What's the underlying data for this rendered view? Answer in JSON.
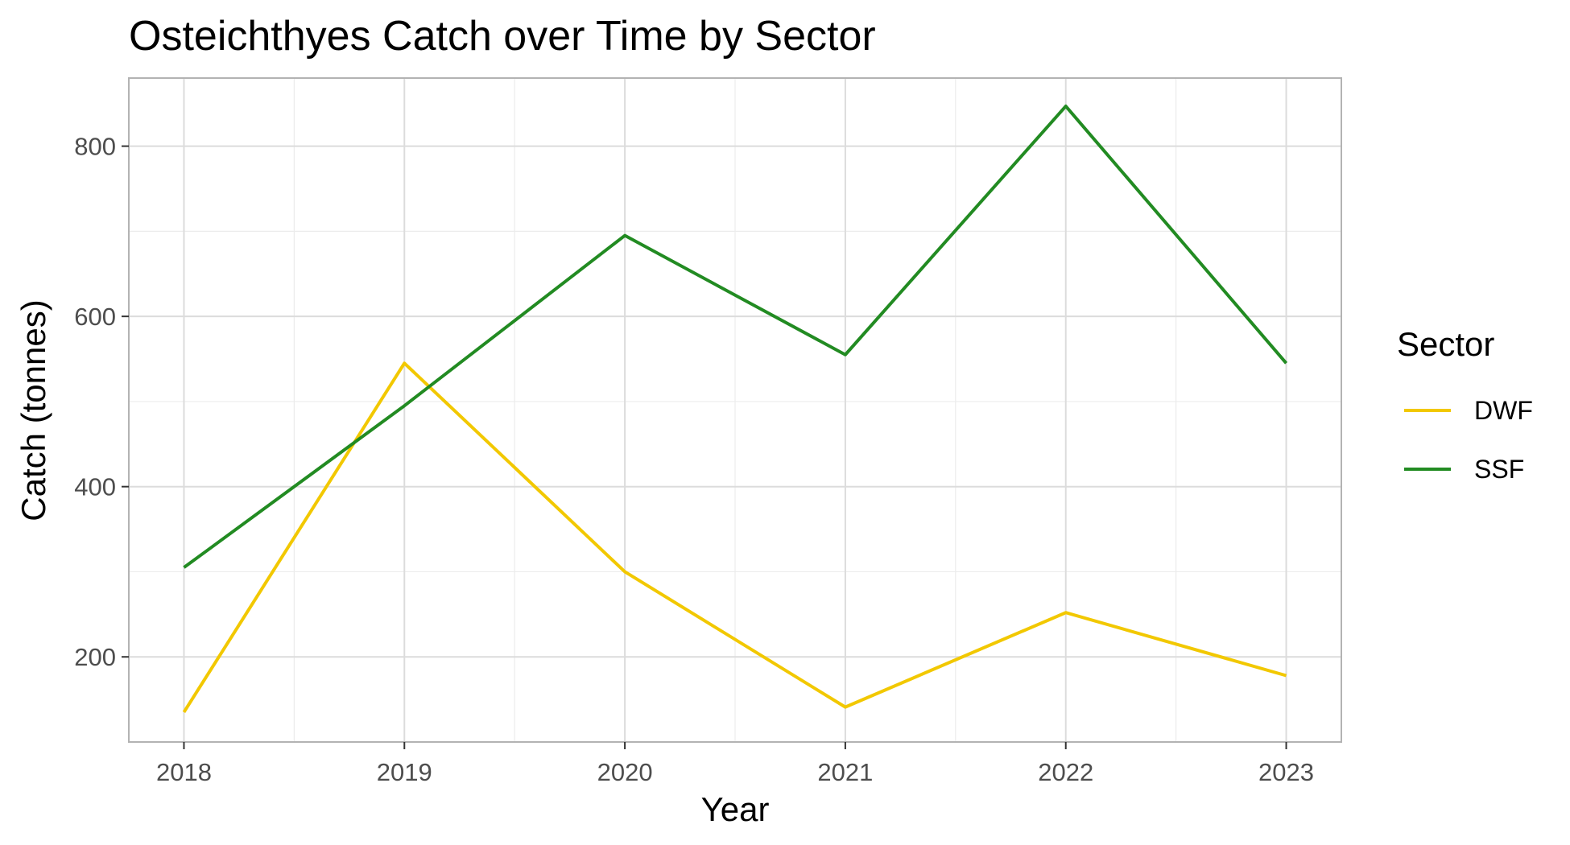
{
  "chart_data": {
    "type": "line",
    "title": "Osteichthyes Catch over Time by Sector",
    "xlabel": "Year",
    "ylabel": "Catch (tonnes)",
    "x": [
      2018,
      2019,
      2020,
      2021,
      2022,
      2023
    ],
    "x_tick_labels": [
      "2018",
      "2019",
      "2020",
      "2021",
      "2022",
      "2023"
    ],
    "y_ticks": [
      200,
      400,
      600,
      800
    ],
    "y_tick_labels": [
      "200",
      "400",
      "600",
      "800"
    ],
    "xlim": [
      2017.75,
      2023.25
    ],
    "ylim": [
      100,
      880
    ],
    "grid": true,
    "legend": {
      "title": "Sector",
      "position": "right"
    },
    "series": [
      {
        "name": "DWF",
        "color": "#f2c800",
        "values": [
          135,
          545,
          300,
          141,
          252,
          178
        ]
      },
      {
        "name": "SSF",
        "color": "#228b22",
        "values": [
          305,
          495,
          695,
          555,
          847,
          545
        ]
      }
    ]
  }
}
